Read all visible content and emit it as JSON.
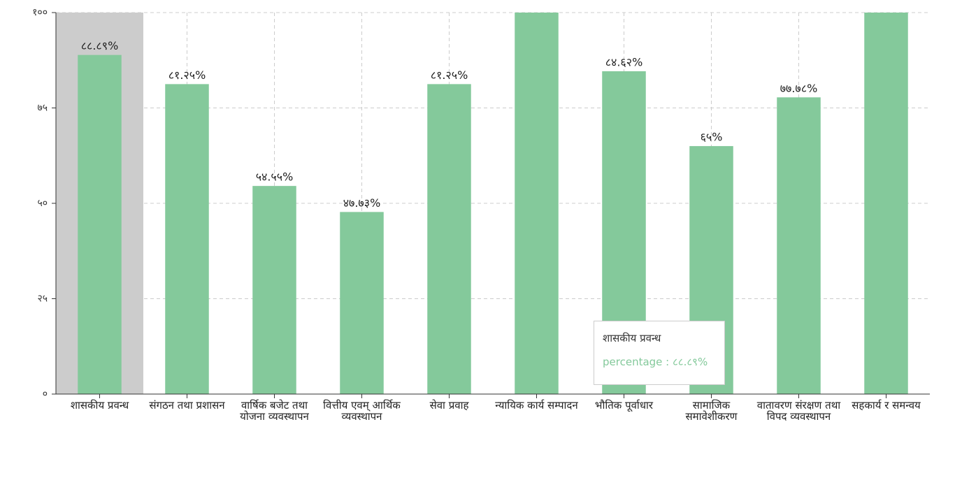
{
  "chart_data": {
    "type": "bar",
    "categories": [
      "शासकीय प्रवन्ध",
      "संगठन तथा प्रशासन",
      "वार्षिक बजेट तथा योजना व्यवस्थापन",
      "वित्तीय एवम् आर्थिक व्यवस्थापन",
      "सेवा प्रवाह",
      "न्यायिक कार्य सम्पादन",
      "भौतिक पूर्वाधार",
      "सामाजिक समावेशीकरण",
      "वातावरण संरक्षण तथा विपद व्यवस्थापन",
      "सहकार्य र समन्वय"
    ],
    "values": [
      88.89,
      81.25,
      54.55,
      47.73,
      81.25,
      100,
      84.62,
      65,
      77.78,
      100
    ],
    "value_labels": [
      "८८.८९%",
      "८१.२५%",
      "५४.५५%",
      "४७.७३%",
      "८१.२५%",
      null,
      "८४.६२%",
      "६५%",
      "७७.७८%",
      null
    ],
    "color": "#84c99b",
    "ylim": [
      0,
      100
    ],
    "yticks": [
      {
        "value": 0,
        "label": "०"
      },
      {
        "value": 25,
        "label": "२५"
      },
      {
        "value": 50,
        "label": "५०"
      },
      {
        "value": 75,
        "label": "७५"
      },
      {
        "value": 100,
        "label": "१००"
      }
    ],
    "grid": true,
    "highlight_index": 0,
    "tooltip": {
      "title": "शासकीय प्रवन्ध",
      "text": "percentage : ८८.८९%"
    }
  }
}
